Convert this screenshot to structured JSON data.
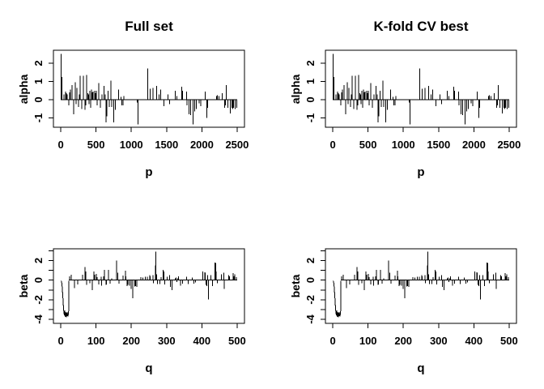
{
  "figure": {
    "background": "#ffffff",
    "foreground": "#000000"
  },
  "panels": [
    {
      "title": "Full set",
      "chart": 0,
      "col": 0,
      "row": 0
    },
    {
      "title": "K-fold CV best",
      "chart": 0,
      "col": 1,
      "row": 0
    },
    {
      "title": "",
      "chart": 1,
      "col": 0,
      "row": 1
    },
    {
      "title": "",
      "chart": 1,
      "col": 1,
      "row": 1
    }
  ],
  "chart_data": [
    {
      "type": "bar",
      "subtype": "spike-plot",
      "titles_shown_above": [
        "Full set",
        "K-fold CV best"
      ],
      "xlabel": "p",
      "ylabel": "alpha",
      "xticks": [
        0,
        500,
        1000,
        1500,
        2000,
        2500
      ],
      "yticks": [
        -1,
        0,
        1,
        2
      ],
      "xlim": [
        -104,
        2604
      ],
      "ylim": [
        -1.51,
        2.71
      ],
      "baseline": [
        1,
        2500
      ],
      "grid": false,
      "legend": "none",
      "spikes": [
        [
          5,
          2.5
        ],
        [
          14,
          1.25
        ],
        [
          46,
          0.3
        ],
        [
          68,
          0.45
        ],
        [
          80,
          0.35
        ],
        [
          91,
          0.3
        ],
        [
          114,
          -0.3
        ],
        [
          125,
          0.4
        ],
        [
          137,
          0.55
        ],
        [
          160,
          0.8
        ],
        [
          183,
          -0.8
        ],
        [
          205,
          0.95
        ],
        [
          217,
          -0.25
        ],
        [
          228,
          0.65
        ],
        [
          251,
          -0.4
        ],
        [
          263,
          0.3
        ],
        [
          274,
          1.3
        ],
        [
          297,
          -0.5
        ],
        [
          320,
          1.3
        ],
        [
          342,
          -0.55
        ],
        [
          354,
          -0.3
        ],
        [
          365,
          1.35
        ],
        [
          385,
          0.35
        ],
        [
          394,
          0.3
        ],
        [
          400,
          -0.25
        ],
        [
          411,
          0.5
        ],
        [
          423,
          -0.45
        ],
        [
          434,
          0.55
        ],
        [
          446,
          0.4
        ],
        [
          457,
          0.45
        ],
        [
          479,
          0.5
        ],
        [
          490,
          0.35
        ],
        [
          503,
          0.5
        ],
        [
          514,
          -0.3
        ],
        [
          537,
          0.9
        ],
        [
          560,
          -0.45
        ],
        [
          583,
          0.3
        ],
        [
          616,
          0.75
        ],
        [
          628,
          0.3
        ],
        [
          640,
          -1.25
        ],
        [
          651,
          -0.9
        ],
        [
          670,
          0.5
        ],
        [
          685,
          -0.4
        ],
        [
          708,
          1.05
        ],
        [
          720,
          -0.4
        ],
        [
          753,
          -1.25
        ],
        [
          776,
          -0.55
        ],
        [
          820,
          0.55
        ],
        [
          856,
          0.15
        ],
        [
          867,
          -0.3
        ],
        [
          885,
          -0.3
        ],
        [
          895,
          0.2
        ],
        [
          1085,
          -0.15
        ],
        [
          1096,
          -1.35
        ],
        [
          1230,
          1.7
        ],
        [
          1270,
          0.6
        ],
        [
          1305,
          0.65
        ],
        [
          1360,
          0.75
        ],
        [
          1395,
          0.3
        ],
        [
          1415,
          0.55
        ],
        [
          1461,
          -0.35
        ],
        [
          1520,
          0.3
        ],
        [
          1543,
          -0.25
        ],
        [
          1623,
          0.5
        ],
        [
          1646,
          0.2
        ],
        [
          1716,
          0.7
        ],
        [
          1728,
          0.5
        ],
        [
          1781,
          0.45
        ],
        [
          1792,
          -0.3
        ],
        [
          1819,
          -0.8
        ],
        [
          1842,
          -0.85
        ],
        [
          1876,
          -1.35
        ],
        [
          1899,
          -0.65
        ],
        [
          1922,
          -0.5
        ],
        [
          1963,
          -0.2
        ],
        [
          1986,
          -0.35
        ],
        [
          2048,
          0.45
        ],
        [
          2071,
          -1.0
        ],
        [
          2083,
          -0.45
        ],
        [
          2208,
          0.2
        ],
        [
          2220,
          0.25
        ],
        [
          2242,
          0.2
        ],
        [
          2288,
          0.35
        ],
        [
          2322,
          -0.45
        ],
        [
          2334,
          -0.3
        ],
        [
          2345,
          0.8
        ],
        [
          2368,
          -0.45
        ],
        [
          2402,
          -0.75
        ],
        [
          2425,
          -0.45
        ],
        [
          2437,
          -0.5
        ],
        [
          2448,
          -0.45
        ],
        [
          2471,
          -0.5
        ],
        [
          2494,
          -0.45
        ]
      ]
    },
    {
      "type": "bar",
      "subtype": "spike-plot",
      "titles_shown_above": [],
      "xlabel": "q",
      "ylabel": "beta",
      "xticks": [
        0,
        100,
        200,
        300,
        400,
        500
      ],
      "yticks": [
        -4,
        -2,
        0,
        2
      ],
      "yticks_minor": [
        -4,
        -3,
        -2,
        -1,
        0,
        1,
        2,
        3
      ],
      "xlim": [
        -21,
        521
      ],
      "ylim": [
        -4.41,
        3.2
      ],
      "baseline": [
        23,
        500
      ],
      "grid": false,
      "legend": "none",
      "lead_path": [
        [
          1,
          -0.05
        ],
        [
          3,
          -0.35
        ],
        [
          4,
          -0.8
        ],
        [
          5,
          -1.3
        ],
        [
          6,
          -1.9
        ],
        [
          7,
          -2.5
        ],
        [
          8,
          -3.0
        ],
        [
          9,
          -3.35
        ],
        [
          10,
          -3.6
        ],
        [
          11,
          -3.1
        ],
        [
          12,
          -3.7
        ],
        [
          13,
          -3.25
        ],
        [
          14,
          -3.75
        ],
        [
          15,
          -3.35
        ],
        [
          16,
          -3.8
        ],
        [
          17,
          -3.3
        ],
        [
          18,
          -3.65
        ],
        [
          19,
          -3.4
        ],
        [
          20,
          -3.7
        ],
        [
          21,
          -3.2
        ],
        [
          22,
          -3.55
        ],
        [
          23,
          -0.05
        ]
      ],
      "spikes": [
        [
          25,
          0.4
        ],
        [
          30,
          0.55
        ],
        [
          39,
          -0.8
        ],
        [
          48,
          -0.45
        ],
        [
          62,
          0.55
        ],
        [
          69,
          1.35
        ],
        [
          71,
          0.9
        ],
        [
          73,
          -0.5
        ],
        [
          82,
          -0.3
        ],
        [
          89,
          -1.0
        ],
        [
          94,
          0.9
        ],
        [
          96,
          0.55
        ],
        [
          101,
          0.65
        ],
        [
          103,
          0.3
        ],
        [
          108,
          -0.45
        ],
        [
          114,
          0.35
        ],
        [
          116,
          -0.55
        ],
        [
          121,
          0.4
        ],
        [
          124,
          1.05
        ],
        [
          128,
          -0.5
        ],
        [
          130,
          -0.45
        ],
        [
          135,
          1.05
        ],
        [
          140,
          -0.35
        ],
        [
          144,
          0.2
        ],
        [
          158,
          2.0
        ],
        [
          162,
          0.75
        ],
        [
          165,
          -0.35
        ],
        [
          176,
          0.45
        ],
        [
          183,
          0.95
        ],
        [
          185,
          0.4
        ],
        [
          188,
          -0.6
        ],
        [
          190,
          -0.5
        ],
        [
          195,
          -0.55
        ],
        [
          199,
          -0.9
        ],
        [
          204,
          -1.85
        ],
        [
          210,
          -0.65
        ],
        [
          212,
          -0.6
        ],
        [
          215,
          -0.7
        ],
        [
          227,
          0.3
        ],
        [
          233,
          0.25
        ],
        [
          240,
          0.35
        ],
        [
          245,
          0.35
        ],
        [
          252,
          0.5
        ],
        [
          254,
          0.4
        ],
        [
          261,
          0.5
        ],
        [
          263,
          -0.3
        ],
        [
          268,
          1.5
        ],
        [
          270,
          2.9
        ],
        [
          272,
          0.6
        ],
        [
          274,
          -0.4
        ],
        [
          281,
          -0.4
        ],
        [
          284,
          0.3
        ],
        [
          290,
          1.05
        ],
        [
          292,
          0.9
        ],
        [
          295,
          -0.45
        ],
        [
          302,
          0.35
        ],
        [
          308,
          0.5
        ],
        [
          311,
          -0.7
        ],
        [
          316,
          -1.0
        ],
        [
          325,
          0.2
        ],
        [
          327,
          0.25
        ],
        [
          329,
          -0.2
        ],
        [
          332,
          0.2
        ],
        [
          334,
          0.4
        ],
        [
          339,
          -0.55
        ],
        [
          345,
          -0.35
        ],
        [
          357,
          0.35
        ],
        [
          361,
          -0.4
        ],
        [
          373,
          0.25
        ],
        [
          378,
          -0.35
        ],
        [
          382,
          -0.25
        ],
        [
          403,
          0.9
        ],
        [
          408,
          0.8
        ],
        [
          410,
          0.75
        ],
        [
          412,
          -0.5
        ],
        [
          414,
          -0.6
        ],
        [
          417,
          0.5
        ],
        [
          419,
          -1.95
        ],
        [
          426,
          0.5
        ],
        [
          430,
          -0.6
        ],
        [
          437,
          1.8
        ],
        [
          439,
          1.75
        ],
        [
          441,
          0.9
        ],
        [
          444,
          -0.3
        ],
        [
          455,
          0.6
        ],
        [
          462,
          0.75
        ],
        [
          464,
          -0.9
        ],
        [
          476,
          0.5
        ],
        [
          478,
          0.4
        ],
        [
          489,
          0.7
        ],
        [
          491,
          0.4
        ],
        [
          493,
          0.6
        ],
        [
          498,
          0.3
        ]
      ]
    }
  ]
}
